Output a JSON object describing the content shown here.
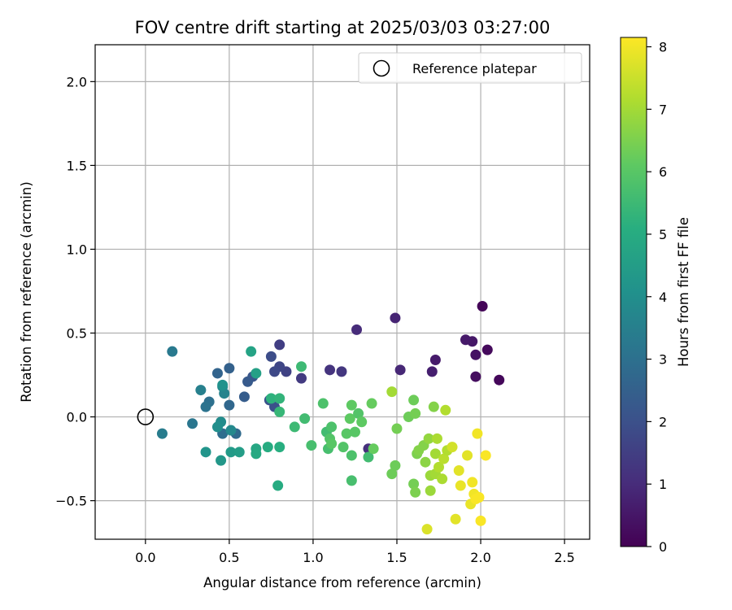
{
  "chart_data": {
    "type": "scatter",
    "title": "FOV centre drift starting at 2025/03/03 03:27:00",
    "xlabel": "Angular distance from reference (arcmin)",
    "ylabel": "Rotation from reference (arcmin)",
    "xlim": [
      -0.3,
      2.65
    ],
    "ylim": [
      -0.73,
      2.22
    ],
    "xticks": [
      0.0,
      0.5,
      1.0,
      1.5,
      2.0,
      2.5
    ],
    "xtick_labels": [
      "0.0",
      "0.5",
      "1.0",
      "1.5",
      "2.0",
      "2.5"
    ],
    "yticks": [
      -0.5,
      0.0,
      0.5,
      1.0,
      1.5,
      2.0
    ],
    "ytick_labels": [
      "−0.5",
      "0.0",
      "0.5",
      "1.0",
      "1.5",
      "2.0"
    ],
    "grid": true,
    "legend": {
      "placement": "top-right",
      "entries": [
        "Reference platepar"
      ]
    },
    "reference_point": {
      "x": 0.0,
      "y": 0.0
    },
    "colorbar": {
      "label": "Hours from first FF file",
      "colormap": "viridis",
      "range": [
        0,
        8.15
      ],
      "ticks": [
        0,
        1,
        2,
        3,
        4,
        5,
        6,
        7,
        8
      ],
      "tick_labels": [
        "0",
        "1",
        "2",
        "3",
        "4",
        "5",
        "6",
        "7",
        "8"
      ]
    },
    "points": [
      {
        "x": 2.01,
        "y": 0.66,
        "c": 0.1
      },
      {
        "x": 2.04,
        "y": 0.4,
        "c": 0.2
      },
      {
        "x": 2.11,
        "y": 0.22,
        "c": 0.15
      },
      {
        "x": 1.97,
        "y": 0.24,
        "c": 0.3
      },
      {
        "x": 1.97,
        "y": 0.37,
        "c": 0.4
      },
      {
        "x": 1.95,
        "y": 0.45,
        "c": 0.5
      },
      {
        "x": 1.91,
        "y": 0.46,
        "c": 0.55
      },
      {
        "x": 1.73,
        "y": 0.34,
        "c": 0.6
      },
      {
        "x": 1.71,
        "y": 0.27,
        "c": 0.7
      },
      {
        "x": 1.49,
        "y": 0.59,
        "c": 0.8
      },
      {
        "x": 1.52,
        "y": 0.28,
        "c": 0.9
      },
      {
        "x": 1.26,
        "y": 0.52,
        "c": 1.0
      },
      {
        "x": 1.33,
        "y": -0.19,
        "c": 1.1
      },
      {
        "x": 1.1,
        "y": 0.28,
        "c": 1.2
      },
      {
        "x": 1.17,
        "y": 0.27,
        "c": 1.3
      },
      {
        "x": 0.93,
        "y": 0.23,
        "c": 1.4
      },
      {
        "x": 0.8,
        "y": 0.43,
        "c": 1.5
      },
      {
        "x": 0.84,
        "y": 0.27,
        "c": 1.6
      },
      {
        "x": 0.8,
        "y": 0.3,
        "c": 1.7
      },
      {
        "x": 0.77,
        "y": 0.27,
        "c": 1.8
      },
      {
        "x": 0.75,
        "y": 0.36,
        "c": 1.9
      },
      {
        "x": 0.77,
        "y": 0.06,
        "c": 2.0
      },
      {
        "x": 0.74,
        "y": 0.1,
        "c": 2.1
      },
      {
        "x": 0.64,
        "y": 0.24,
        "c": 2.2
      },
      {
        "x": 0.61,
        "y": 0.21,
        "c": 2.3
      },
      {
        "x": 0.59,
        "y": 0.12,
        "c": 2.4
      },
      {
        "x": 0.5,
        "y": 0.29,
        "c": 2.5
      },
      {
        "x": 0.43,
        "y": 0.26,
        "c": 2.6
      },
      {
        "x": 0.5,
        "y": 0.07,
        "c": 2.7
      },
      {
        "x": 0.54,
        "y": -0.1,
        "c": 2.8
      },
      {
        "x": 0.46,
        "y": -0.1,
        "c": 2.9
      },
      {
        "x": 0.38,
        "y": 0.09,
        "c": 3.0
      },
      {
        "x": 0.36,
        "y": 0.06,
        "c": 3.1
      },
      {
        "x": 0.28,
        "y": -0.04,
        "c": 3.2
      },
      {
        "x": 0.16,
        "y": 0.39,
        "c": 3.3
      },
      {
        "x": 0.1,
        "y": -0.1,
        "c": 3.4
      },
      {
        "x": 0.33,
        "y": 0.16,
        "c": 3.5
      },
      {
        "x": 0.47,
        "y": 0.14,
        "c": 3.6
      },
      {
        "x": 0.46,
        "y": 0.18,
        "c": 3.7
      },
      {
        "x": 0.51,
        "y": -0.08,
        "c": 3.8
      },
      {
        "x": 0.45,
        "y": -0.03,
        "c": 3.9
      },
      {
        "x": 0.43,
        "y": -0.06,
        "c": 4.0
      },
      {
        "x": 0.46,
        "y": 0.19,
        "c": 4.1
      },
      {
        "x": 0.36,
        "y": -0.21,
        "c": 4.2
      },
      {
        "x": 0.45,
        "y": -0.26,
        "c": 4.3
      },
      {
        "x": 0.51,
        "y": -0.21,
        "c": 4.4
      },
      {
        "x": 0.56,
        "y": -0.21,
        "c": 4.5
      },
      {
        "x": 0.66,
        "y": 0.26,
        "c": 4.6
      },
      {
        "x": 0.63,
        "y": 0.39,
        "c": 4.7
      },
      {
        "x": 0.66,
        "y": -0.19,
        "c": 4.8
      },
      {
        "x": 0.66,
        "y": -0.22,
        "c": 4.9
      },
      {
        "x": 0.73,
        "y": -0.18,
        "c": 5.0
      },
      {
        "x": 0.8,
        "y": -0.18,
        "c": 5.1
      },
      {
        "x": 0.79,
        "y": -0.41,
        "c": 5.0
      },
      {
        "x": 0.75,
        "y": 0.11,
        "c": 5.2
      },
      {
        "x": 0.8,
        "y": 0.11,
        "c": 5.3
      },
      {
        "x": 0.8,
        "y": 0.03,
        "c": 5.4
      },
      {
        "x": 0.89,
        "y": -0.06,
        "c": 5.5
      },
      {
        "x": 0.95,
        "y": -0.01,
        "c": 5.6
      },
      {
        "x": 0.93,
        "y": 0.3,
        "c": 5.5
      },
      {
        "x": 0.99,
        "y": -0.17,
        "c": 5.7
      },
      {
        "x": 1.06,
        "y": 0.08,
        "c": 5.8
      },
      {
        "x": 1.08,
        "y": -0.09,
        "c": 5.6
      },
      {
        "x": 1.09,
        "y": -0.19,
        "c": 5.7
      },
      {
        "x": 1.11,
        "y": -0.06,
        "c": 5.8
      },
      {
        "x": 1.1,
        "y": -0.13,
        "c": 5.9
      },
      {
        "x": 1.11,
        "y": -0.16,
        "c": 6.0
      },
      {
        "x": 1.18,
        "y": -0.18,
        "c": 5.9
      },
      {
        "x": 1.2,
        "y": -0.1,
        "c": 6.0
      },
      {
        "x": 1.22,
        "y": -0.01,
        "c": 6.1
      },
      {
        "x": 1.23,
        "y": 0.07,
        "c": 6.1
      },
      {
        "x": 1.25,
        "y": -0.09,
        "c": 6.0
      },
      {
        "x": 1.27,
        "y": 0.02,
        "c": 5.9
      },
      {
        "x": 1.29,
        "y": -0.03,
        "c": 6.1
      },
      {
        "x": 1.23,
        "y": -0.23,
        "c": 5.8
      },
      {
        "x": 1.23,
        "y": -0.38,
        "c": 5.7
      },
      {
        "x": 1.33,
        "y": -0.24,
        "c": 5.6
      },
      {
        "x": 1.35,
        "y": 0.08,
        "c": 6.2
      },
      {
        "x": 1.36,
        "y": -0.19,
        "c": 6.2
      },
      {
        "x": 1.47,
        "y": -0.34,
        "c": 6.3
      },
      {
        "x": 1.49,
        "y": -0.29,
        "c": 6.3
      },
      {
        "x": 1.47,
        "y": 0.15,
        "c": 7.0
      },
      {
        "x": 1.5,
        "y": -0.07,
        "c": 6.4
      },
      {
        "x": 1.57,
        "y": 0.0,
        "c": 6.3
      },
      {
        "x": 1.61,
        "y": 0.02,
        "c": 6.4
      },
      {
        "x": 1.6,
        "y": 0.1,
        "c": 6.3
      },
      {
        "x": 1.6,
        "y": -0.4,
        "c": 6.4
      },
      {
        "x": 1.61,
        "y": -0.45,
        "c": 6.5
      },
      {
        "x": 1.62,
        "y": -0.22,
        "c": 6.5
      },
      {
        "x": 1.63,
        "y": -0.2,
        "c": 6.6
      },
      {
        "x": 1.66,
        "y": -0.17,
        "c": 6.6
      },
      {
        "x": 1.67,
        "y": -0.27,
        "c": 6.7
      },
      {
        "x": 1.69,
        "y": -0.13,
        "c": 6.8
      },
      {
        "x": 1.7,
        "y": -0.35,
        "c": 6.9
      },
      {
        "x": 1.7,
        "y": -0.44,
        "c": 6.9
      },
      {
        "x": 1.72,
        "y": 0.06,
        "c": 6.6
      },
      {
        "x": 1.73,
        "y": -0.34,
        "c": 7.0
      },
      {
        "x": 1.73,
        "y": -0.22,
        "c": 7.0
      },
      {
        "x": 1.74,
        "y": -0.13,
        "c": 7.1
      },
      {
        "x": 1.75,
        "y": -0.3,
        "c": 7.2
      },
      {
        "x": 1.77,
        "y": -0.37,
        "c": 7.1
      },
      {
        "x": 1.78,
        "y": -0.25,
        "c": 7.3
      },
      {
        "x": 1.79,
        "y": 0.04,
        "c": 7.2
      },
      {
        "x": 1.8,
        "y": -0.2,
        "c": 7.2
      },
      {
        "x": 1.83,
        "y": -0.18,
        "c": 7.6
      },
      {
        "x": 1.68,
        "y": -0.67,
        "c": 7.7
      },
      {
        "x": 1.85,
        "y": -0.61,
        "c": 7.8
      },
      {
        "x": 1.87,
        "y": -0.32,
        "c": 7.8
      },
      {
        "x": 1.88,
        "y": -0.41,
        "c": 7.9
      },
      {
        "x": 1.92,
        "y": -0.23,
        "c": 7.8
      },
      {
        "x": 1.94,
        "y": -0.52,
        "c": 7.9
      },
      {
        "x": 1.95,
        "y": -0.39,
        "c": 8.0
      },
      {
        "x": 1.96,
        "y": -0.46,
        "c": 8.0
      },
      {
        "x": 1.97,
        "y": -0.49,
        "c": 8.1
      },
      {
        "x": 1.98,
        "y": -0.1,
        "c": 8.0
      },
      {
        "x": 1.99,
        "y": -0.48,
        "c": 8.1
      },
      {
        "x": 2.0,
        "y": -0.62,
        "c": 8.1
      },
      {
        "x": 2.03,
        "y": -0.23,
        "c": 8.1
      }
    ]
  }
}
